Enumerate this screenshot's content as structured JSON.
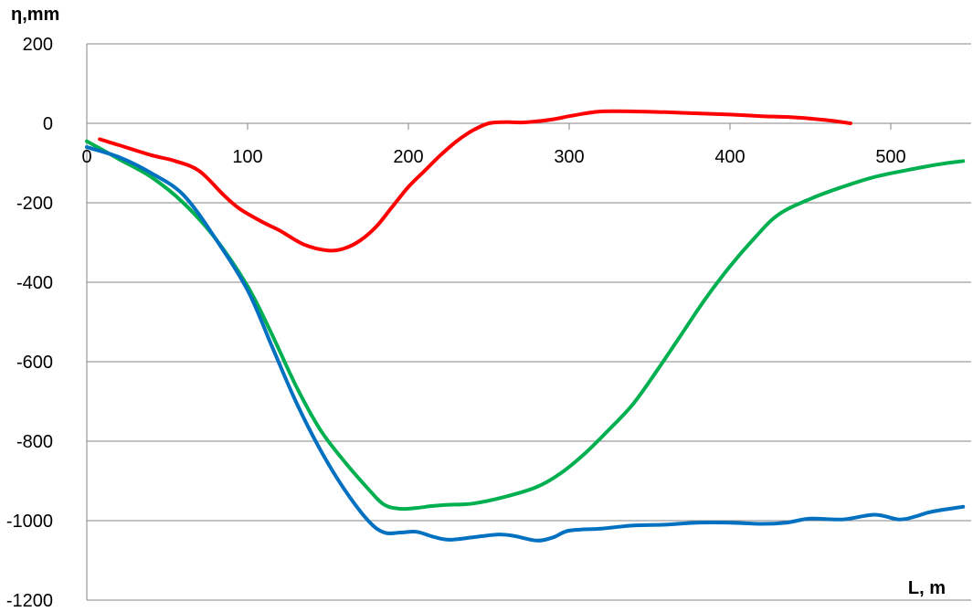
{
  "chart_data": {
    "type": "line",
    "ylabel": "η,mm",
    "xlabel": "L, m",
    "xlim": [
      0,
      550
    ],
    "ylim": [
      -1200,
      200
    ],
    "x_ticks": [
      0,
      100,
      200,
      300,
      400,
      500
    ],
    "y_ticks": [
      200,
      0,
      -200,
      -400,
      -600,
      -800,
      -1000,
      -1200
    ],
    "x_tick_labels": [
      "0",
      "100",
      "200",
      "300",
      "400",
      "500"
    ],
    "y_tick_labels": [
      "200",
      "0",
      "-200",
      "-400",
      "-600",
      "-800",
      "-1000",
      "-1200"
    ],
    "grid": true,
    "legend": "none",
    "series": [
      {
        "color": "#ff0000",
        "points": [
          [
            8,
            -40
          ],
          [
            20,
            -55
          ],
          [
            40,
            -80
          ],
          [
            55,
            -95
          ],
          [
            70,
            -120
          ],
          [
            85,
            -180
          ],
          [
            95,
            -215
          ],
          [
            110,
            -250
          ],
          [
            120,
            -270
          ],
          [
            135,
            -305
          ],
          [
            150,
            -320
          ],
          [
            160,
            -315
          ],
          [
            170,
            -295
          ],
          [
            180,
            -260
          ],
          [
            190,
            -210
          ],
          [
            200,
            -160
          ],
          [
            210,
            -120
          ],
          [
            220,
            -80
          ],
          [
            230,
            -45
          ],
          [
            240,
            -18
          ],
          [
            250,
            0
          ],
          [
            260,
            3
          ],
          [
            270,
            2
          ],
          [
            280,
            5
          ],
          [
            290,
            10
          ],
          [
            300,
            18
          ],
          [
            310,
            25
          ],
          [
            320,
            30
          ],
          [
            340,
            30
          ],
          [
            360,
            28
          ],
          [
            380,
            25
          ],
          [
            400,
            22
          ],
          [
            420,
            18
          ],
          [
            440,
            15
          ],
          [
            460,
            8
          ],
          [
            475,
            0
          ]
        ]
      },
      {
        "color": "#00b050",
        "points": [
          [
            0,
            -45
          ],
          [
            20,
            -90
          ],
          [
            40,
            -135
          ],
          [
            60,
            -200
          ],
          [
            80,
            -290
          ],
          [
            100,
            -410
          ],
          [
            115,
            -530
          ],
          [
            130,
            -660
          ],
          [
            145,
            -770
          ],
          [
            160,
            -850
          ],
          [
            175,
            -920
          ],
          [
            185,
            -960
          ],
          [
            195,
            -970
          ],
          [
            205,
            -968
          ],
          [
            215,
            -963
          ],
          [
            225,
            -960
          ],
          [
            240,
            -957
          ],
          [
            260,
            -940
          ],
          [
            280,
            -915
          ],
          [
            295,
            -880
          ],
          [
            310,
            -830
          ],
          [
            325,
            -770
          ],
          [
            340,
            -705
          ],
          [
            355,
            -620
          ],
          [
            370,
            -530
          ],
          [
            385,
            -440
          ],
          [
            400,
            -360
          ],
          [
            415,
            -290
          ],
          [
            430,
            -230
          ],
          [
            450,
            -190
          ],
          [
            470,
            -160
          ],
          [
            490,
            -135
          ],
          [
            510,
            -118
          ],
          [
            530,
            -103
          ],
          [
            545,
            -95
          ]
        ]
      },
      {
        "color": "#0070c0",
        "points": [
          [
            0,
            -60
          ],
          [
            20,
            -85
          ],
          [
            40,
            -125
          ],
          [
            60,
            -180
          ],
          [
            80,
            -290
          ],
          [
            100,
            -420
          ],
          [
            115,
            -560
          ],
          [
            130,
            -700
          ],
          [
            145,
            -820
          ],
          [
            160,
            -920
          ],
          [
            175,
            -1000
          ],
          [
            185,
            -1030
          ],
          [
            195,
            -1030
          ],
          [
            205,
            -1028
          ],
          [
            215,
            -1040
          ],
          [
            225,
            -1048
          ],
          [
            240,
            -1042
          ],
          [
            255,
            -1035
          ],
          [
            265,
            -1038
          ],
          [
            280,
            -1050
          ],
          [
            290,
            -1042
          ],
          [
            300,
            -1025
          ],
          [
            320,
            -1020
          ],
          [
            340,
            -1012
          ],
          [
            360,
            -1010
          ],
          [
            380,
            -1005
          ],
          [
            400,
            -1005
          ],
          [
            420,
            -1008
          ],
          [
            435,
            -1005
          ],
          [
            450,
            -995
          ],
          [
            470,
            -997
          ],
          [
            490,
            -985
          ],
          [
            505,
            -997
          ],
          [
            515,
            -990
          ],
          [
            525,
            -978
          ],
          [
            545,
            -965
          ]
        ]
      }
    ]
  }
}
